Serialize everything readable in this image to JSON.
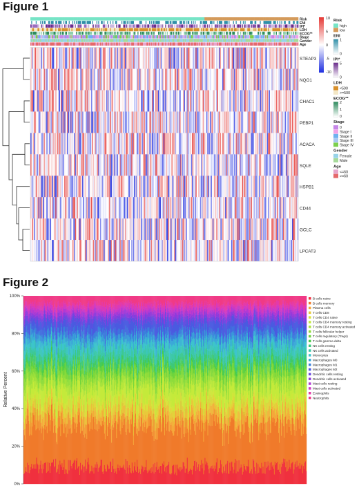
{
  "figure1": {
    "title": "Figure 1",
    "annotation_tracks": [
      "Risk",
      "ENI",
      "IPI*",
      "LDH",
      "ECOG**",
      "Stage",
      "Gender",
      "Age"
    ],
    "genes": [
      "STEAP3",
      "NQO1",
      "CHAC1",
      "PEBP1",
      "ACACA",
      "SQLE",
      "HSPB1",
      "CD44",
      "GCLC",
      "LPCAT3"
    ],
    "color_scale": {
      "ticks": [
        "10",
        "5",
        "0",
        "-5",
        "-10"
      ],
      "high": "#e53935",
      "mid": "#ffffff",
      "low": "#1e2ee0"
    },
    "legends": [
      {
        "title": "Risk",
        "items": [
          {
            "label": "high",
            "color": "#76e4c6"
          },
          {
            "label": "low",
            "color": "#d49a5a"
          }
        ]
      },
      {
        "title": "ENI",
        "gradient": [
          "#ffffff",
          "#2f8fa8"
        ],
        "ticks": [
          "1",
          "0"
        ]
      },
      {
        "title": "IPI*",
        "gradient": [
          "#ffffff",
          "#6a2c8c"
        ],
        "ticks": [
          "5",
          "0"
        ]
      },
      {
        "title": "LDH",
        "items": [
          {
            "label": "<500",
            "color": "#d8902c"
          },
          {
            "label": ">=500",
            "color": "#f3e7c6"
          }
        ]
      },
      {
        "title": "ECOG**",
        "gradient": [
          "#ffffff",
          "#2d8b5d"
        ],
        "ticks": [
          "2",
          "1",
          "0"
        ]
      },
      {
        "title": "Stage",
        "items": [
          {
            "label": "0",
            "color": "#c686e8"
          },
          {
            "label": "Stage I",
            "color": "#f2a2e6"
          },
          {
            "label": "Stage II",
            "color": "#6fb0ef"
          },
          {
            "label": "Stage III",
            "color": "#a8c7f2"
          },
          {
            "label": "Stage IV",
            "color": "#7cd04c"
          }
        ]
      },
      {
        "title": "Gender",
        "items": [
          {
            "label": "Female",
            "color": "#97d3e8"
          },
          {
            "label": "Male",
            "color": "#a6d99a"
          }
        ]
      },
      {
        "title": "Age",
        "items": [
          {
            "label": "<=60",
            "color": "#e7a5cc"
          },
          {
            "label": ">=60",
            "color": "#e5686b"
          }
        ]
      }
    ]
  },
  "figure2": {
    "title": "Figure 2",
    "chart_data": {
      "type": "area",
      "title": "",
      "xlabel": "",
      "ylabel": "Relative Percent",
      "ylim": [
        0,
        100
      ],
      "yticks": [
        "0%",
        "20%",
        "40%",
        "60%",
        "80%",
        "100%"
      ],
      "stacked": true,
      "legend_position": "right",
      "series": [
        {
          "name": "B cells naive",
          "color": "#f0303e",
          "value": 9
        },
        {
          "name": "B cells memory",
          "color": "#f07a2a",
          "value": 23
        },
        {
          "name": "Plasma cells",
          "color": "#f5a83a",
          "value": 5
        },
        {
          "name": "T cells CD8",
          "color": "#e8c93a",
          "value": 4
        },
        {
          "name": "T cells CD4 naive",
          "color": "#d8e33a",
          "value": 3
        },
        {
          "name": "T cells CD4 memory resting",
          "color": "#c4ea3a",
          "value": 8
        },
        {
          "name": "T cells CD4 memory activated",
          "color": "#a8e33a",
          "value": 3
        },
        {
          "name": "T cells follicular helper",
          "color": "#8edc3a",
          "value": 4
        },
        {
          "name": "T cells regulatory (Tregs)",
          "color": "#6ed43c",
          "value": 3
        },
        {
          "name": "T cells gamma delta",
          "color": "#48cc48",
          "value": 2
        },
        {
          "name": "NK cells resting",
          "color": "#3cc87a",
          "value": 3
        },
        {
          "name": "NK cells activated",
          "color": "#3cc8a8",
          "value": 4
        },
        {
          "name": "Monocytes",
          "color": "#3cc4cc",
          "value": 4
        },
        {
          "name": "Macrophages M0",
          "color": "#3aa8d8",
          "value": 3
        },
        {
          "name": "Macrophages M1",
          "color": "#3a80dc",
          "value": 3
        },
        {
          "name": "Macrophages M2",
          "color": "#4a5ae0",
          "value": 5
        },
        {
          "name": "Dendritic cells resting",
          "color": "#6a48e0",
          "value": 2
        },
        {
          "name": "Dendritic cells activated",
          "color": "#8c3cdc",
          "value": 2
        },
        {
          "name": "Mast cells resting",
          "color": "#b03ad4",
          "value": 2
        },
        {
          "name": "Mast cells activated",
          "color": "#d03ac4",
          "value": 2
        },
        {
          "name": "Eosinophils",
          "color": "#e43aa8",
          "value": 2
        },
        {
          "name": "Neutrophils",
          "color": "#f03a86",
          "value": 4
        }
      ]
    }
  }
}
